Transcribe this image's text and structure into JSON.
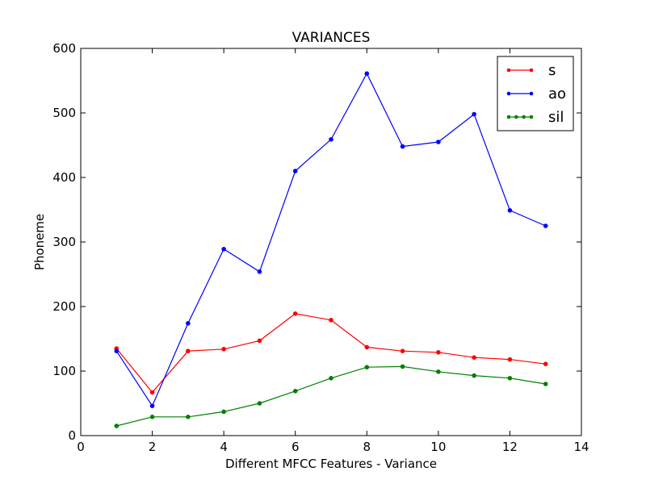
{
  "chart_data": {
    "type": "line",
    "title": "VARIANCES",
    "xlabel": "Different MFCC Features - Variance",
    "ylabel": "Phoneme",
    "xlim": [
      0,
      14
    ],
    "ylim": [
      0,
      600
    ],
    "xticks": [
      "0",
      "2",
      "4",
      "6",
      "8",
      "10",
      "12",
      "14"
    ],
    "yticks": [
      "0",
      "100",
      "200",
      "300",
      "400",
      "500",
      "600"
    ],
    "grid": false,
    "legend_position": "top-right",
    "x": [
      1,
      2,
      3,
      4,
      5,
      6,
      7,
      8,
      9,
      10,
      11,
      12,
      13
    ],
    "series": [
      {
        "name": "s",
        "color": "#ff0000",
        "values": [
          135,
          67,
          131,
          134,
          147,
          189,
          179,
          137,
          131,
          129,
          121,
          118,
          111
        ]
      },
      {
        "name": "ao",
        "color": "#0000ff",
        "values": [
          131,
          46,
          174,
          289,
          254,
          410,
          459,
          561,
          448,
          455,
          498,
          349,
          325
        ]
      },
      {
        "name": "sil",
        "color": "#008000",
        "values": [
          15,
          29,
          29,
          37,
          50,
          69,
          89,
          106,
          107,
          99,
          93,
          89,
          80
        ]
      }
    ]
  }
}
